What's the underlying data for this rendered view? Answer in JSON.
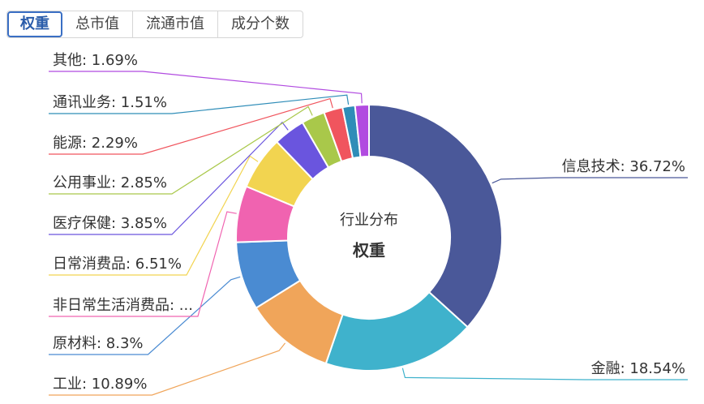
{
  "tabs": [
    {
      "label": "权重",
      "active": true
    },
    {
      "label": "总市值",
      "active": false
    },
    {
      "label": "流通市值",
      "active": false
    },
    {
      "label": "成分个数",
      "active": false
    }
  ],
  "chart_data": {
    "type": "donut",
    "title": "行业分布",
    "subtitle": "权重",
    "values": [
      36.72,
      18.54,
      10.89,
      8.3,
      6.85,
      6.51,
      3.85,
      2.85,
      2.29,
      1.51,
      1.69
    ],
    "value_labels": [
      "信息技术: 36.72%",
      "金融: 18.54%",
      "工业: 10.89%",
      "原材料: 8.3%",
      "非日常生活消费品: ...",
      "日常消费品: 6.51%",
      "医疗保健: 3.85%",
      "公用事业: 2.85%",
      "能源: 2.29%",
      "通讯业务: 1.51%",
      "其他: 1.69%"
    ],
    "colors": [
      "#4a5899",
      "#3fb2cc",
      "#f0a55a",
      "#4a8bd2",
      "#f063b0",
      "#f2d450",
      "#6a55de",
      "#a9c84a",
      "#f0555e",
      "#2f8db8",
      "#b14be0"
    ]
  }
}
